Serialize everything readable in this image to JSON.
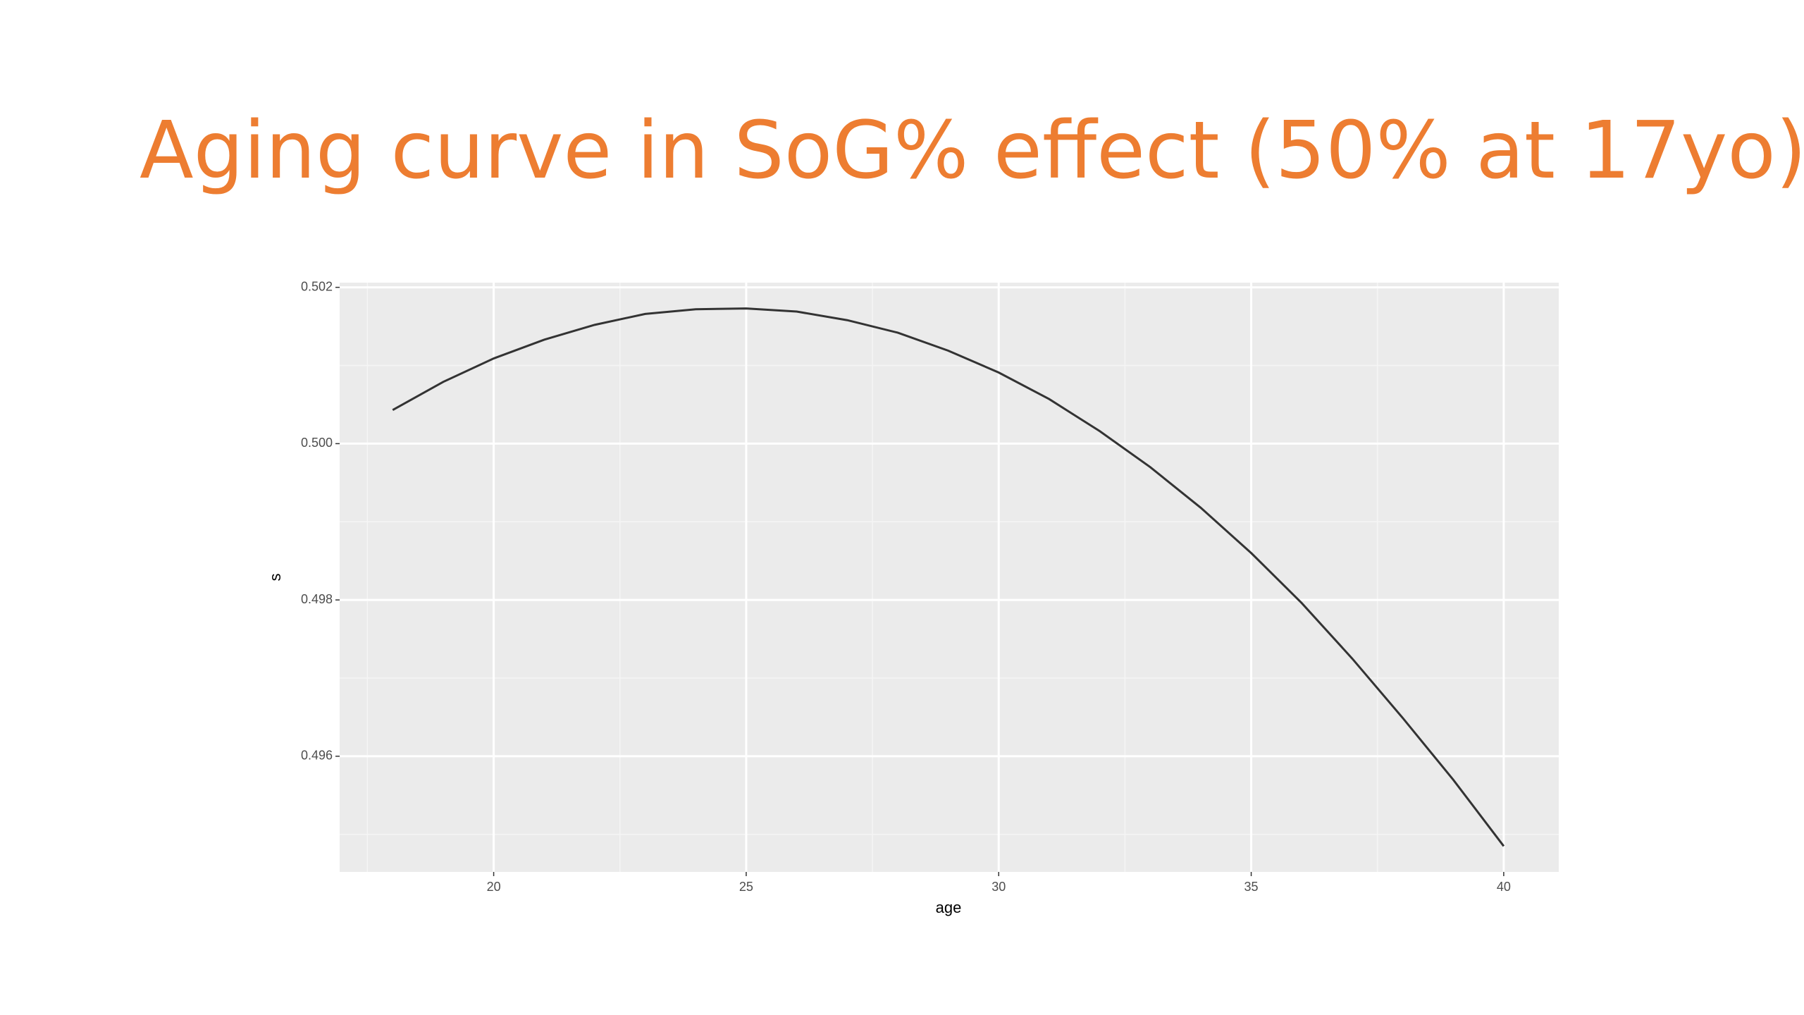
{
  "chart_data": {
    "type": "line",
    "title": "Aging curve in SoG% effect (50% at 17yo)",
    "x_label": "age",
    "y_label": "s",
    "x": [
      18,
      19,
      20,
      21,
      22,
      23,
      24,
      25,
      26,
      27,
      28,
      29,
      30,
      31,
      32,
      33,
      34,
      35,
      36,
      37,
      38,
      39,
      40
    ],
    "series": [
      {
        "color": "#333333",
        "values": [
          0.50043,
          0.50079,
          0.50109,
          0.50133,
          0.50152,
          0.50166,
          0.50172,
          0.50173,
          0.50169,
          0.50158,
          0.50142,
          0.50119,
          0.50091,
          0.50057,
          0.50016,
          0.4997,
          0.49918,
          0.4986,
          0.49796,
          0.49725,
          0.49649,
          0.4957,
          0.49485
        ]
      }
    ],
    "xlim": [
      16.95,
      41.09
    ],
    "xticks": [
      20,
      25,
      30,
      35,
      40
    ],
    "ylim": [
      0.49452,
      0.50206
    ],
    "yticks": [
      {
        "value": 0.496,
        "label": "0.496"
      },
      {
        "value": 0.498,
        "label": "0.498"
      },
      {
        "value": 0.5,
        "label": "0.500"
      },
      {
        "value": 0.502,
        "label": "0.502"
      }
    ],
    "grid": true
  }
}
